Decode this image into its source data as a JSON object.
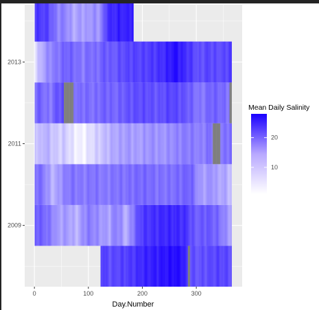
{
  "chart_data": {
    "type": "heatmap",
    "title": "",
    "xlabel": "Day.Number",
    "ylabel": "",
    "xlim": [
      -18,
      385
    ],
    "ylim": [
      2007.5,
      2014.4
    ],
    "x_ticks": [
      0,
      100,
      200,
      300
    ],
    "y_ticks": [
      2009,
      2011,
      2013
    ],
    "grid": true,
    "legend": {
      "title": "Mean Daily Salinity",
      "position": "right",
      "ticks": [
        10,
        20
      ],
      "range": [
        1,
        28
      ],
      "low_color": "#ffffff",
      "high_color": "#1a00ff",
      "na_color": "#7f7f7f"
    },
    "rows": [
      {
        "year": 2008,
        "start_day": 123,
        "end_day": 365,
        "profile": [
          [
            123,
            22
          ],
          [
            140,
            20
          ],
          [
            160,
            21
          ],
          [
            180,
            22
          ],
          [
            200,
            24
          ],
          [
            220,
            25
          ],
          [
            240,
            26
          ],
          [
            260,
            27
          ],
          [
            275,
            26
          ],
          [
            285,
            21
          ],
          [
            300,
            19
          ],
          [
            320,
            20
          ],
          [
            340,
            21
          ],
          [
            365,
            20
          ]
        ],
        "missing": [
          [
            285,
            288
          ]
        ]
      },
      {
        "year": 2009,
        "start_day": 1,
        "end_day": 365,
        "profile": [
          [
            1,
            19
          ],
          [
            10,
            18
          ],
          [
            20,
            17
          ],
          [
            35,
            14
          ],
          [
            45,
            11
          ],
          [
            60,
            12
          ],
          [
            70,
            10
          ],
          [
            80,
            9
          ],
          [
            90,
            13
          ],
          [
            100,
            15
          ],
          [
            110,
            14
          ],
          [
            125,
            12
          ],
          [
            140,
            11
          ],
          [
            150,
            15
          ],
          [
            160,
            13
          ],
          [
            170,
            9
          ],
          [
            180,
            14
          ],
          [
            190,
            19
          ],
          [
            200,
            22
          ],
          [
            220,
            23
          ],
          [
            240,
            24
          ],
          [
            260,
            24
          ],
          [
            280,
            23
          ],
          [
            290,
            20
          ],
          [
            300,
            18
          ],
          [
            320,
            19
          ],
          [
            340,
            17
          ],
          [
            355,
            13
          ],
          [
            365,
            11
          ]
        ],
        "missing": []
      },
      {
        "year": 2010,
        "start_day": 1,
        "end_day": 365,
        "profile": [
          [
            1,
            17
          ],
          [
            15,
            16
          ],
          [
            25,
            12
          ],
          [
            35,
            9
          ],
          [
            50,
            13
          ],
          [
            60,
            15
          ],
          [
            70,
            16
          ],
          [
            90,
            15
          ],
          [
            110,
            16
          ],
          [
            130,
            15
          ],
          [
            150,
            16
          ],
          [
            170,
            16
          ],
          [
            190,
            17
          ],
          [
            210,
            17
          ],
          [
            230,
            16
          ],
          [
            250,
            16
          ],
          [
            270,
            17
          ],
          [
            290,
            18
          ],
          [
            300,
            14
          ],
          [
            310,
            11
          ],
          [
            320,
            12
          ],
          [
            330,
            13
          ],
          [
            340,
            10
          ],
          [
            350,
            11
          ],
          [
            365,
            8
          ]
        ],
        "missing": []
      },
      {
        "year": 2011,
        "start_day": 1,
        "end_day": 365,
        "profile": [
          [
            1,
            9
          ],
          [
            10,
            7
          ],
          [
            20,
            10
          ],
          [
            30,
            8
          ],
          [
            45,
            6
          ],
          [
            55,
            7
          ],
          [
            65,
            5
          ],
          [
            75,
            3
          ],
          [
            90,
            2
          ],
          [
            100,
            4
          ],
          [
            115,
            6
          ],
          [
            130,
            8
          ],
          [
            145,
            10
          ],
          [
            160,
            11
          ],
          [
            175,
            12
          ],
          [
            190,
            11
          ],
          [
            205,
            12
          ],
          [
            220,
            13
          ],
          [
            235,
            12
          ],
          [
            250,
            13
          ],
          [
            265,
            14
          ],
          [
            280,
            15
          ],
          [
            295,
            15
          ],
          [
            310,
            14
          ],
          [
            320,
            16
          ],
          [
            330,
            16
          ],
          [
            345,
            15
          ],
          [
            355,
            16
          ],
          [
            365,
            17
          ]
        ],
        "missing": [
          [
            331,
            344
          ]
        ]
      },
      {
        "year": 2012,
        "start_day": 1,
        "end_day": 365,
        "profile": [
          [
            1,
            17
          ],
          [
            10,
            18
          ],
          [
            20,
            16
          ],
          [
            30,
            15
          ],
          [
            40,
            19
          ],
          [
            55,
            20
          ],
          [
            70,
            18
          ],
          [
            80,
            16
          ],
          [
            95,
            17
          ],
          [
            110,
            16
          ],
          [
            130,
            18
          ],
          [
            150,
            17
          ],
          [
            170,
            19
          ],
          [
            190,
            20
          ],
          [
            210,
            20
          ],
          [
            230,
            19
          ],
          [
            250,
            21
          ],
          [
            270,
            20
          ],
          [
            290,
            18
          ],
          [
            300,
            16
          ],
          [
            310,
            15
          ],
          [
            320,
            17
          ],
          [
            330,
            18
          ],
          [
            345,
            17
          ],
          [
            360,
            16
          ],
          [
            365,
            18
          ]
        ],
        "missing": [
          [
            55,
            72
          ],
          [
            362,
            365
          ]
        ]
      },
      {
        "year": 2013,
        "start_day": 1,
        "end_day": 365,
        "profile": [
          [
            1,
            5
          ],
          [
            10,
            8
          ],
          [
            20,
            12
          ],
          [
            30,
            14
          ],
          [
            45,
            16
          ],
          [
            60,
            18
          ],
          [
            75,
            17
          ],
          [
            90,
            15
          ],
          [
            100,
            17
          ],
          [
            115,
            16
          ],
          [
            130,
            19
          ],
          [
            145,
            18
          ],
          [
            160,
            20
          ],
          [
            180,
            21
          ],
          [
            200,
            21
          ],
          [
            220,
            22
          ],
          [
            235,
            23
          ],
          [
            250,
            25
          ],
          [
            262,
            27
          ],
          [
            275,
            24
          ],
          [
            290,
            22
          ],
          [
            305,
            19
          ],
          [
            320,
            21
          ],
          [
            335,
            20
          ],
          [
            350,
            20
          ],
          [
            365,
            22
          ]
        ],
        "missing": []
      },
      {
        "year": 2014,
        "start_day": 1,
        "end_day": 183,
        "profile": [
          [
            1,
            22
          ],
          [
            10,
            22
          ],
          [
            25,
            21
          ],
          [
            35,
            17
          ],
          [
            45,
            14
          ],
          [
            55,
            15
          ],
          [
            65,
            12
          ],
          [
            75,
            10
          ],
          [
            85,
            12
          ],
          [
            95,
            11
          ],
          [
            110,
            13
          ],
          [
            120,
            12
          ],
          [
            128,
            17
          ],
          [
            135,
            23
          ],
          [
            150,
            24
          ],
          [
            160,
            25
          ],
          [
            170,
            24
          ],
          [
            183,
            26
          ]
        ],
        "missing": []
      }
    ]
  }
}
